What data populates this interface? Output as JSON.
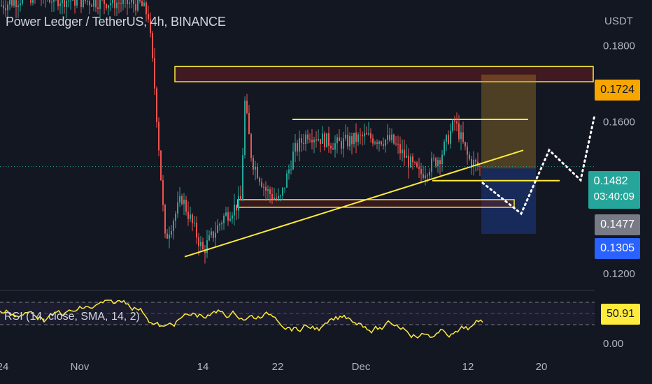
{
  "chart_title": "Power Ledger / TetherUS, 4h, BINANCE",
  "currency": "USDT",
  "price_axis": {
    "labels": [
      "0.1800",
      "0.1600",
      "0.1200"
    ],
    "tick_values": [
      0.18,
      0.16,
      0.12
    ]
  },
  "time_axis": {
    "labels": [
      "24",
      "Nov",
      "14",
      "22",
      "Dec",
      "12",
      "20"
    ]
  },
  "price_tags": {
    "target": "0.1724",
    "last": "0.1482",
    "countdown": "03:40:09",
    "mark": "0.1477",
    "stop": "0.1305"
  },
  "rsi": {
    "label": "RSI (14, close, SMA, 14, 2)",
    "value": "50.91",
    "axis_label": "0.00"
  },
  "colors": {
    "background": "#131722",
    "up": "#26a69a",
    "down": "#ef5350",
    "annotation": "#ffeb3b",
    "target_tag": "#f7a600",
    "last_tag": "#26a69a",
    "mark_tag": "#787b86",
    "stop_tag": "#2962ff"
  },
  "chart_data": {
    "type": "candlestick",
    "title": "Power Ledger / TetherUS, 4h, BINANCE",
    "y_unit": "USDT",
    "ylim": [
      0.116,
      0.192
    ],
    "annotations": {
      "resistance_zone": [
        0.1705,
        0.1745
      ],
      "support_zone": [
        0.1375,
        0.1395
      ],
      "upper_channel": 0.1606,
      "lower_level": 0.1445,
      "ascending_trendline": [
        0.1245,
        0.1525
      ],
      "long_position": {
        "entry": 0.1477,
        "target": 0.1724,
        "stop": 0.1305
      }
    },
    "rsi": {
      "length": 14,
      "smoothing": "SMA",
      "smoothing_length": 14,
      "last": 50.91
    }
  }
}
